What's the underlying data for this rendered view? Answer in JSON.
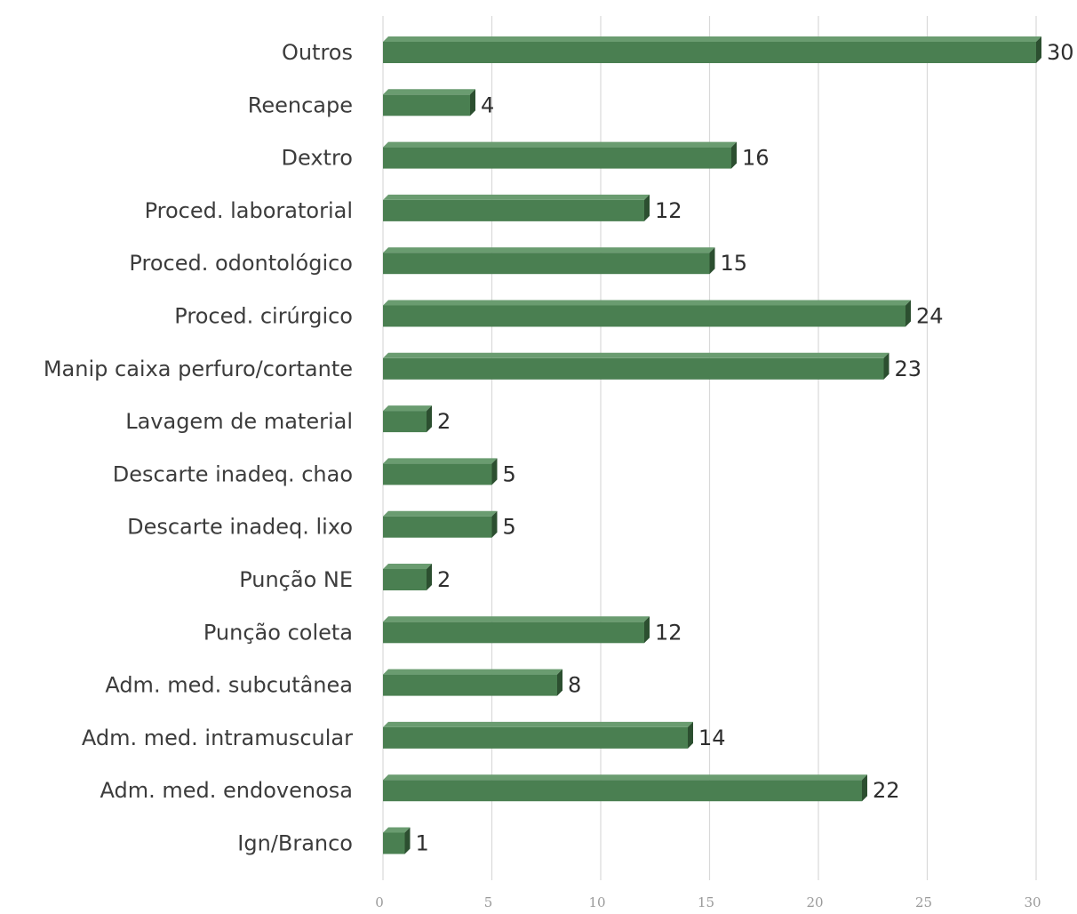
{
  "chart_data": {
    "type": "bar",
    "orientation": "horizontal",
    "categories": [
      "Outros",
      "Reencape",
      "Dextro",
      "Proced. laboratorial",
      "Proced. odontológico",
      "Proced. cirúrgico",
      "Manip caixa perfuro/cortante",
      "Lavagem de material",
      "Descarte inadeq. chao",
      "Descarte inadeq. lixo",
      "Punção NE",
      "Punção coleta",
      "Adm. med. subcutânea",
      "Adm. med. intramuscular",
      "Adm. med. endovenosa",
      "Ign/Branco"
    ],
    "values": [
      30,
      4,
      16,
      12,
      15,
      24,
      23,
      2,
      5,
      5,
      2,
      12,
      8,
      14,
      22,
      1
    ],
    "x_ticks": [
      "0",
      "5",
      "10",
      "15",
      "20",
      "25",
      "30"
    ],
    "xlim": [
      0,
      30
    ],
    "grid": true,
    "legend": "none",
    "bar_color": "#4a7f51",
    "bar_top_color": "#6a9c70",
    "bar_side_color": "#2c4f30"
  }
}
